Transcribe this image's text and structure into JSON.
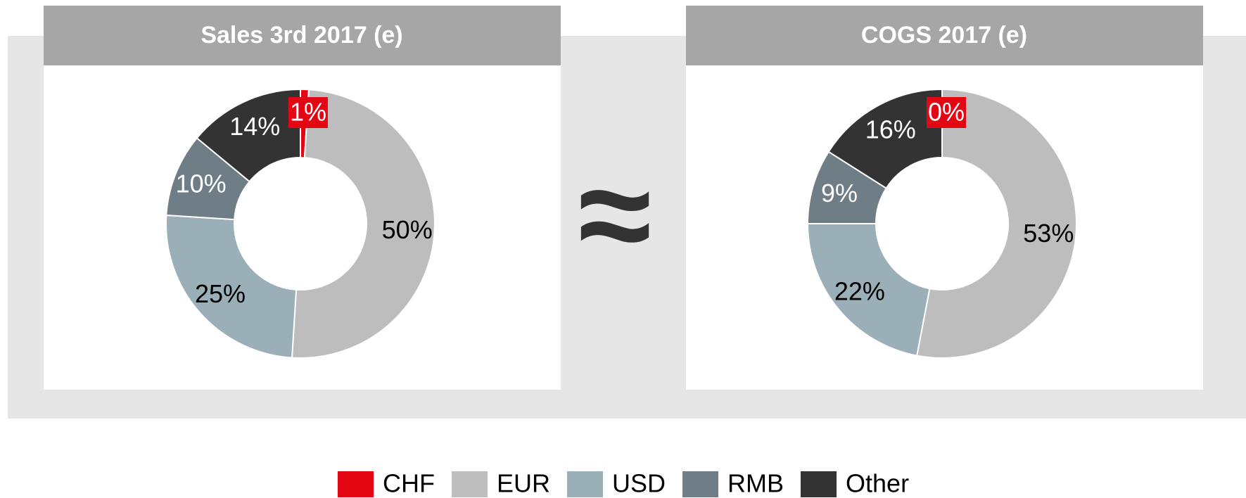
{
  "separator": "≈",
  "chart_data": [
    {
      "type": "pie",
      "title": "Sales 3rd 2017 (e)",
      "categories": [
        "CHF",
        "EUR",
        "USD",
        "RMB",
        "Other"
      ],
      "values": [
        1,
        50,
        25,
        10,
        14
      ],
      "value_labels": [
        "1%",
        "50%",
        "25%",
        "10%",
        "14%"
      ],
      "colors": [
        "#e30613",
        "#bdbdbd",
        "#9aafb8",
        "#6f7e86",
        "#333333"
      ]
    },
    {
      "type": "pie",
      "title": "COGS 2017 (e)",
      "categories": [
        "CHF",
        "EUR",
        "USD",
        "RMB",
        "Other"
      ],
      "values": [
        0,
        53,
        22,
        9,
        16
      ],
      "value_labels": [
        "0%",
        "53%",
        "22%",
        "9%",
        "16%"
      ],
      "colors": [
        "#e30613",
        "#bdbdbd",
        "#9aafb8",
        "#6f7e86",
        "#333333"
      ]
    }
  ]
}
